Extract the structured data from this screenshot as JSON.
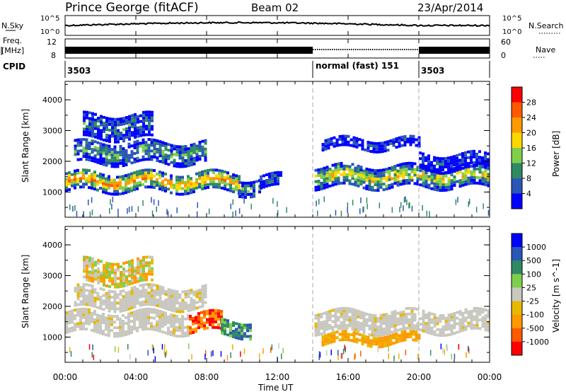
{
  "header": {
    "station": "Prince George (fitACF)",
    "beam": "Beam 02",
    "date": "23/Apr/2014"
  },
  "noise_panel": {
    "left_label": "N.Sky",
    "left_ticks": [
      "10^5",
      "10^0"
    ],
    "right_label": "N.Search",
    "right_ticks": [
      "10^5",
      "10^0"
    ]
  },
  "freq_panel": {
    "left_label_1": "Freq.",
    "left_label_2": "[MHz]",
    "left_ticks": [
      "12",
      "8"
    ],
    "right_label": "Nave",
    "right_ticks": [
      "60",
      "0"
    ]
  },
  "cpid_panel": {
    "label": "CPID",
    "segments": [
      {
        "start_hour": 0,
        "end_hour": 14,
        "text": "3503"
      },
      {
        "start_hour": 14,
        "end_hour": 20,
        "text": "normal (fast) 151"
      },
      {
        "start_hour": 20,
        "end_hour": 24,
        "text": "3503"
      }
    ]
  },
  "x_axis": {
    "label": "Time UT",
    "ticks": [
      "00:00",
      "04:00",
      "08:00",
      "12:00",
      "16:00",
      "20:00",
      "00:00"
    ],
    "range_hours": [
      0,
      24
    ]
  },
  "chart_data": [
    {
      "type": "heatmap",
      "name": "power",
      "ylabel": "Slant Range [km]",
      "ylim": [
        180,
        4600
      ],
      "yticks": [
        1000,
        2000,
        3000,
        4000
      ],
      "ytick_labels": [
        "1000",
        "2000",
        "3000",
        "4000"
      ],
      "colorbar_label": "Power [dB]",
      "colorbar_ticks": [
        "28",
        "24",
        "20",
        "16",
        "12",
        "8",
        "4"
      ],
      "colors": [
        "#0000ff",
        "#2a56b8",
        "#2f8a62",
        "#7fcf4d",
        "#ffd700",
        "#ff9900",
        "#ff5a00",
        "#ff0000"
      ],
      "bands": [
        {
          "t": [
            0,
            9.8
          ],
          "center": 1300,
          "width": 600,
          "level": 0.72
        },
        {
          "t": [
            9.8,
            11
          ],
          "center": 1150,
          "width": 500,
          "level": 0.35
        },
        {
          "t": [
            11,
            12.2
          ],
          "center": 1300,
          "width": 400,
          "level": 0.2
        },
        {
          "t": [
            0.5,
            8
          ],
          "center": 2250,
          "width": 700,
          "level": 0.32
        },
        {
          "t": [
            1,
            5
          ],
          "center": 3100,
          "width": 800,
          "level": 0.25
        },
        {
          "t": [
            14.1,
            24
          ],
          "center": 1450,
          "width": 650,
          "level": 0.55
        },
        {
          "t": [
            14.5,
            20
          ],
          "center": 2550,
          "width": 350,
          "level": 0.1
        },
        {
          "t": [
            20,
            24
          ],
          "center": 1950,
          "width": 500,
          "level": 0.12
        }
      ]
    },
    {
      "type": "heatmap",
      "name": "velocity",
      "ylabel": "Slant Range [km]",
      "ylim": [
        180,
        4600
      ],
      "yticks": [
        1000,
        2000,
        3000,
        4000
      ],
      "ytick_labels": [
        "1000",
        "2000",
        "3000",
        "4000"
      ],
      "colorbar_label": "Velocity [m s^-1]",
      "colorbar_ticks": [
        "1000",
        "500",
        "100",
        "25",
        "-25",
        "-100",
        "-500",
        "-1000"
      ],
      "colors": [
        "#ff0000",
        "#ff5a00",
        "#ff9900",
        "#e6b800",
        "#c8c8c0",
        "#7fcf4d",
        "#2f8a62",
        "#2a56b8",
        "#0000ff"
      ],
      "bands": [
        {
          "t": [
            0,
            7
          ],
          "center": 1450,
          "width": 700,
          "kind": "ground"
        },
        {
          "t": [
            7,
            8.8
          ],
          "center": 1450,
          "width": 600,
          "kind": "negative"
        },
        {
          "t": [
            8.8,
            10.5
          ],
          "center": 1250,
          "width": 500,
          "kind": "positive"
        },
        {
          "t": [
            1,
            5
          ],
          "center": 3100,
          "width": 800,
          "kind": "mixed"
        },
        {
          "t": [
            0.5,
            8
          ],
          "center": 2250,
          "width": 700,
          "kind": "ground"
        },
        {
          "t": [
            14.1,
            24
          ],
          "center": 1450,
          "width": 650,
          "kind": "ground"
        },
        {
          "t": [
            14.5,
            20
          ],
          "center": 900,
          "width": 300,
          "kind": "negative_low"
        }
      ]
    }
  ]
}
